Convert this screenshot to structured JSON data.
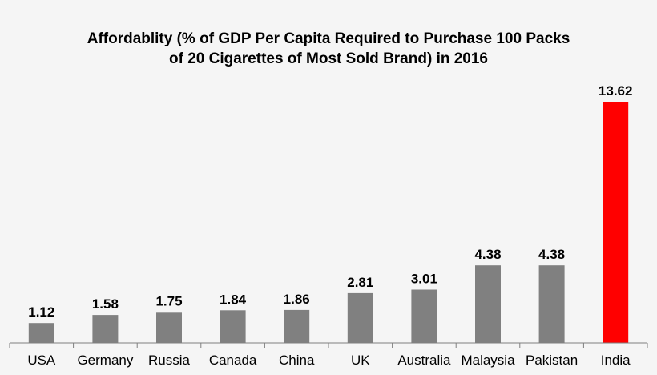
{
  "chart_data": {
    "type": "bar",
    "title": "Affordablity  (% of GDP Per Capita Required to Purchase 100 Packs of 20 Cigarettes of Most Sold Brand) in 2016",
    "title_lines": [
      "Affordablity  (% of GDP Per Capita Required to Purchase 100 Packs",
      "of 20 Cigarettes of Most Sold Brand) in 2016"
    ],
    "categories": [
      "USA",
      "Germany",
      "Russia",
      "Canada",
      "China",
      "UK",
      "Australia",
      "Malaysia",
      "Pakistan",
      "India"
    ],
    "values": [
      1.12,
      1.58,
      1.75,
      1.84,
      1.86,
      2.81,
      3.01,
      4.38,
      4.38,
      13.62
    ],
    "value_labels": [
      "1.12",
      "1.58",
      "1.75",
      "1.84",
      "1.86",
      "2.81",
      "3.01",
      "4.38",
      "4.38",
      "13.62"
    ],
    "bar_colors": [
      "#808080",
      "#808080",
      "#808080",
      "#808080",
      "#808080",
      "#808080",
      "#808080",
      "#808080",
      "#808080",
      "#ff0000"
    ],
    "xlabel": "",
    "ylabel": "",
    "ylim": [
      0,
      13.62
    ],
    "grid": false,
    "legend": "none"
  }
}
